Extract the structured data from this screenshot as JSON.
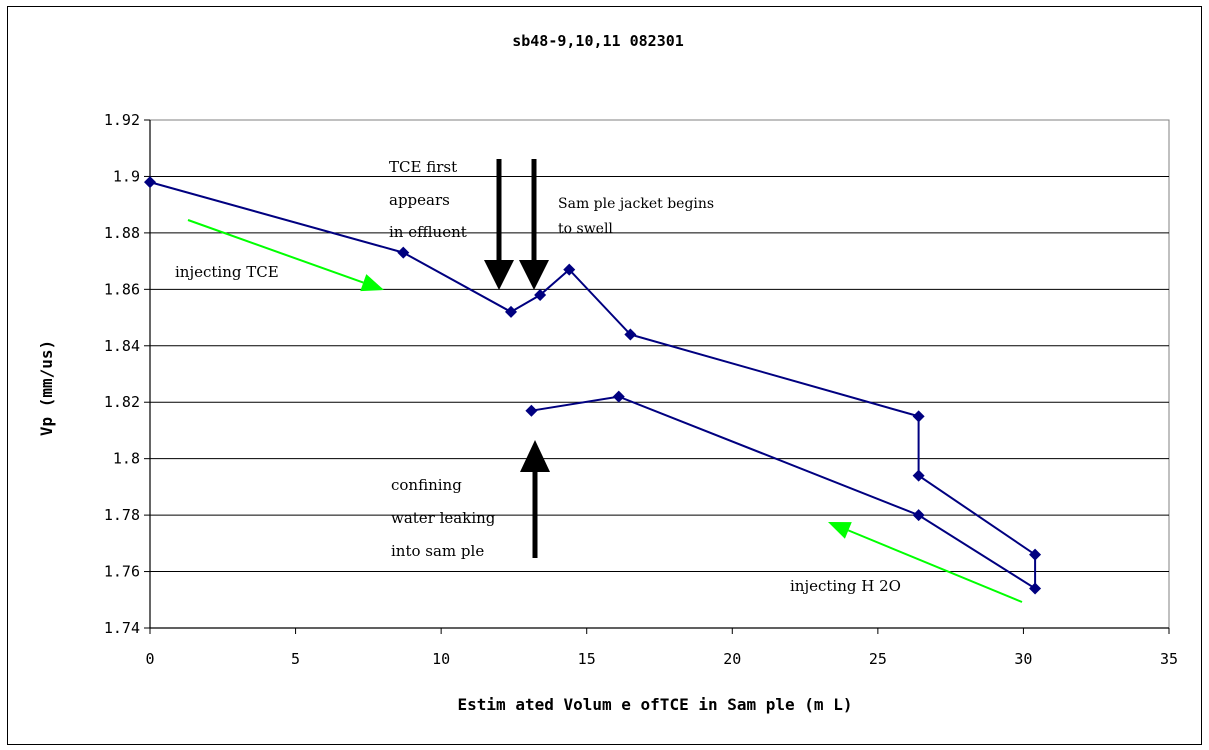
{
  "chart_data": {
    "type": "line",
    "title": "sb48-9,10,11 082301",
    "xlabel": "Estim ated Volum e ofTCE in Sam ple (m L)",
    "ylabel": "Vp  (mm/us)",
    "xlim": [
      0,
      35
    ],
    "ylim": [
      1.74,
      1.92
    ],
    "x_ticks": [
      "0",
      "5",
      "10",
      "15",
      "20",
      "25",
      "30",
      "35"
    ],
    "y_ticks": [
      "1.74",
      "1.76",
      "1.78",
      "1.8",
      "1.82",
      "1.84",
      "1.86",
      "1.88",
      "1.9",
      "1.92"
    ],
    "grid": "horizontal",
    "series": [
      {
        "color": "#000080",
        "marker": "diamond",
        "x": [
          0,
          8.7,
          12.4,
          13.4,
          14.4,
          16.5,
          26.4,
          26.4,
          30.4,
          30.4,
          26.4,
          16.1,
          13.1
        ],
        "y": [
          1.898,
          1.873,
          1.852,
          1.858,
          1.867,
          1.844,
          1.815,
          1.794,
          1.766,
          1.754,
          1.78,
          1.822,
          1.817
        ]
      }
    ],
    "annotations": [
      {
        "lines": [
          "TCE first",
          "appears",
          "in effluent"
        ]
      },
      {
        "lines": [
          "Sam ple jacket begins",
          "to swell"
        ]
      },
      {
        "lines": [
          "injecting TCE"
        ]
      },
      {
        "lines": [
          "confining",
          "water leaking",
          "into sam ple"
        ]
      },
      {
        "lines": [
          "injecting H 2O"
        ]
      }
    ],
    "arrow_colors": {
      "black": "#000000",
      "green": "#00ff00"
    }
  }
}
